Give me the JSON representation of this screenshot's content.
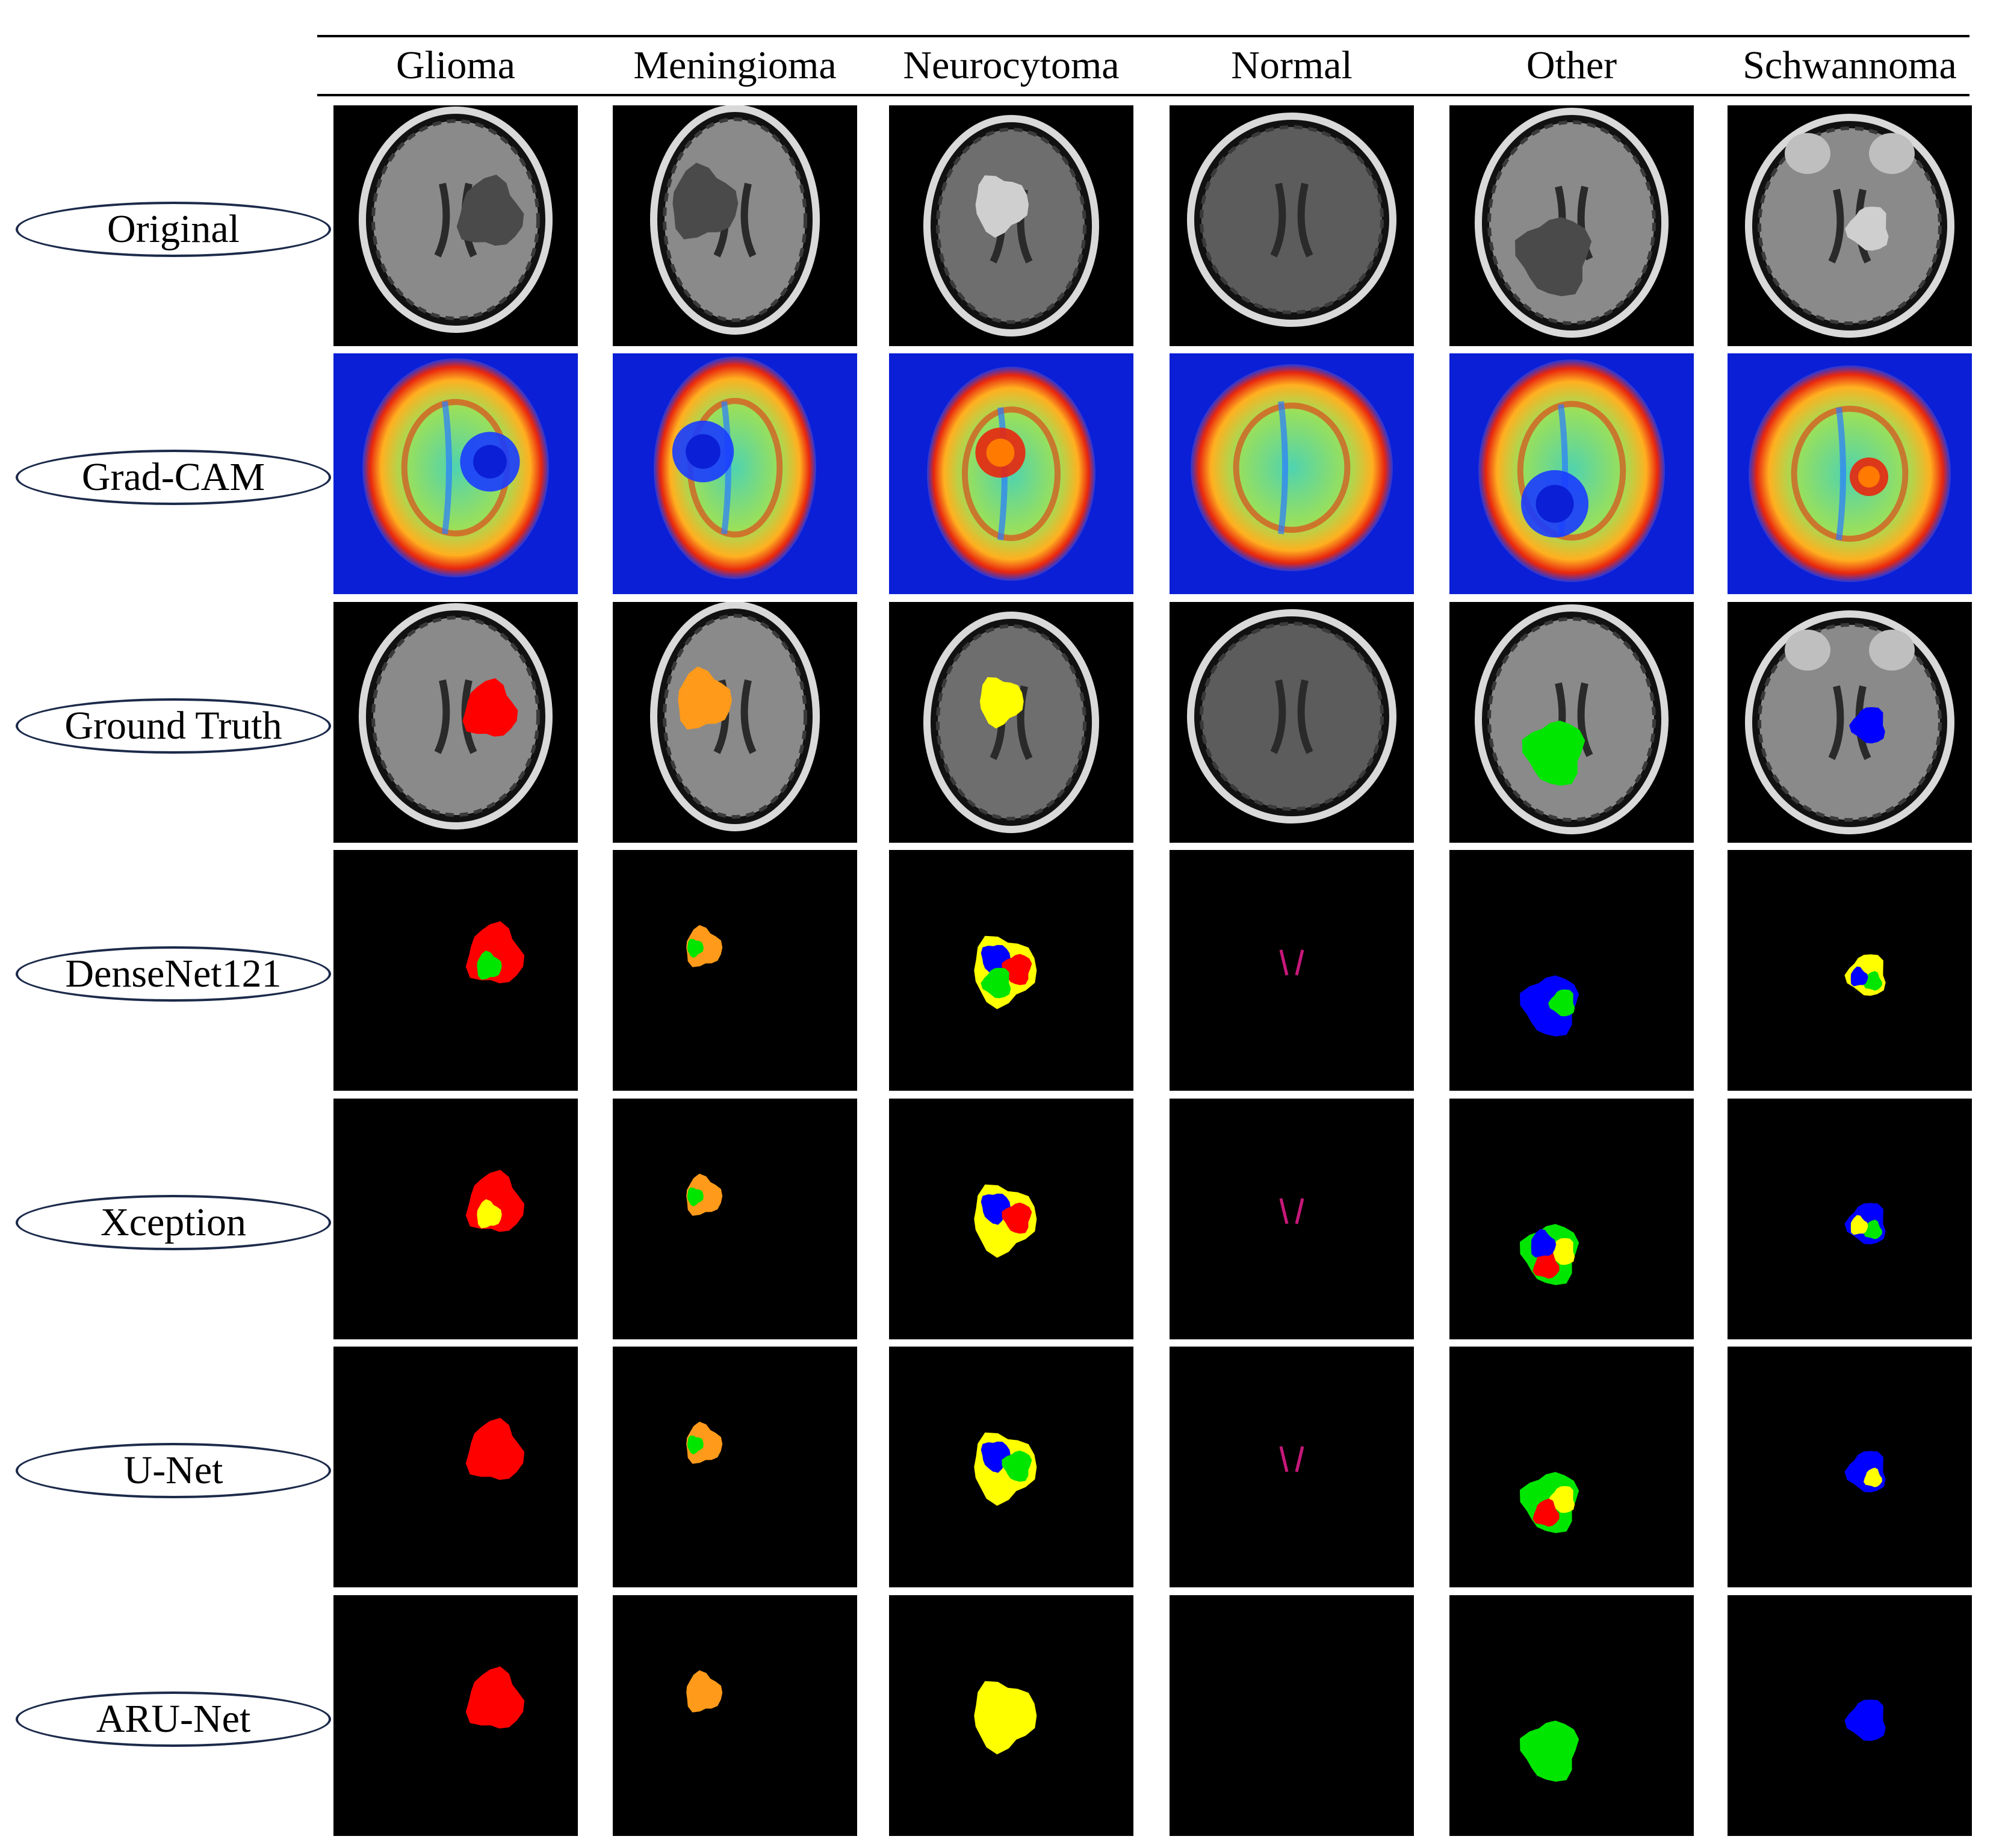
{
  "columns": [
    "Glioma",
    "Meningioma",
    "Neurocytoma",
    "Normal",
    "Other",
    "Schwannoma"
  ],
  "rows": [
    "Original",
    "Grad-CAM",
    "Ground Truth",
    "DenseNet121",
    "Xception",
    "U-Net",
    "ARU-Net"
  ],
  "class_colors": {
    "red": "#ff0000",
    "orange": "#ff9a1a",
    "yellow": "#ffff00",
    "green": "#00e600",
    "blue": "#0000ff",
    "magenta": "#c8187a"
  },
  "grid": [
    [
      {
        "type": "mri",
        "brain": "glioma"
      },
      {
        "type": "mri",
        "brain": "meningioma"
      },
      {
        "type": "mri",
        "brain": "neurocytoma"
      },
      {
        "type": "mri",
        "brain": "normal"
      },
      {
        "type": "mri",
        "brain": "other"
      },
      {
        "type": "mri",
        "brain": "schwannoma"
      }
    ],
    [
      {
        "type": "cam",
        "brain": "glioma"
      },
      {
        "type": "cam",
        "brain": "meningioma"
      },
      {
        "type": "cam",
        "brain": "neurocytoma"
      },
      {
        "type": "cam",
        "brain": "normal"
      },
      {
        "type": "cam",
        "brain": "other"
      },
      {
        "type": "cam",
        "brain": "schwannoma"
      }
    ],
    [
      {
        "type": "gt",
        "brain": "glioma",
        "mask": [
          "red"
        ]
      },
      {
        "type": "gt",
        "brain": "meningioma",
        "mask": [
          "orange"
        ]
      },
      {
        "type": "gt",
        "brain": "neurocytoma",
        "mask": [
          "yellow"
        ]
      },
      {
        "type": "gt",
        "brain": "normal",
        "mask": []
      },
      {
        "type": "gt",
        "brain": "other",
        "mask": [
          "green"
        ]
      },
      {
        "type": "gt",
        "brain": "schwannoma",
        "mask": [
          "blue"
        ]
      }
    ],
    [
      {
        "type": "seg",
        "brain": "glioma",
        "mask": [
          "red",
          "green"
        ]
      },
      {
        "type": "seg",
        "brain": "meningioma",
        "mask": [
          "orange",
          "green"
        ]
      },
      {
        "type": "seg",
        "brain": "neurocytoma",
        "mask": [
          "yellow",
          "blue",
          "red",
          "green"
        ]
      },
      {
        "type": "seg",
        "brain": "normal",
        "mask": [
          "magenta"
        ]
      },
      {
        "type": "seg",
        "brain": "other",
        "mask": [
          "blue",
          "green"
        ]
      },
      {
        "type": "seg",
        "brain": "schwannoma",
        "mask": [
          "yellow",
          "green",
          "blue"
        ]
      }
    ],
    [
      {
        "type": "seg",
        "brain": "glioma",
        "mask": [
          "red",
          "yellow"
        ]
      },
      {
        "type": "seg",
        "brain": "meningioma",
        "mask": [
          "orange",
          "green"
        ]
      },
      {
        "type": "seg",
        "brain": "neurocytoma",
        "mask": [
          "yellow",
          "blue",
          "red"
        ]
      },
      {
        "type": "seg",
        "brain": "normal",
        "mask": [
          "magenta"
        ]
      },
      {
        "type": "seg",
        "brain": "other",
        "mask": [
          "green",
          "yellow",
          "red",
          "blue"
        ]
      },
      {
        "type": "seg",
        "brain": "schwannoma",
        "mask": [
          "blue",
          "green",
          "yellow"
        ]
      }
    ],
    [
      {
        "type": "seg",
        "brain": "glioma",
        "mask": [
          "red"
        ]
      },
      {
        "type": "seg",
        "brain": "meningioma",
        "mask": [
          "orange",
          "green"
        ]
      },
      {
        "type": "seg",
        "brain": "neurocytoma",
        "mask": [
          "yellow",
          "blue",
          "green"
        ]
      },
      {
        "type": "seg",
        "brain": "normal",
        "mask": [
          "magenta"
        ]
      },
      {
        "type": "seg",
        "brain": "other",
        "mask": [
          "green",
          "yellow",
          "red"
        ]
      },
      {
        "type": "seg",
        "brain": "schwannoma",
        "mask": [
          "blue",
          "yellow"
        ]
      }
    ],
    [
      {
        "type": "seg",
        "brain": "glioma",
        "mask": [
          "red"
        ]
      },
      {
        "type": "seg",
        "brain": "meningioma",
        "mask": [
          "orange"
        ]
      },
      {
        "type": "seg",
        "brain": "neurocytoma",
        "mask": [
          "yellow"
        ]
      },
      {
        "type": "seg",
        "brain": "normal",
        "mask": []
      },
      {
        "type": "seg",
        "brain": "other",
        "mask": [
          "green"
        ]
      },
      {
        "type": "seg",
        "brain": "schwannoma",
        "mask": [
          "blue"
        ]
      }
    ]
  ]
}
